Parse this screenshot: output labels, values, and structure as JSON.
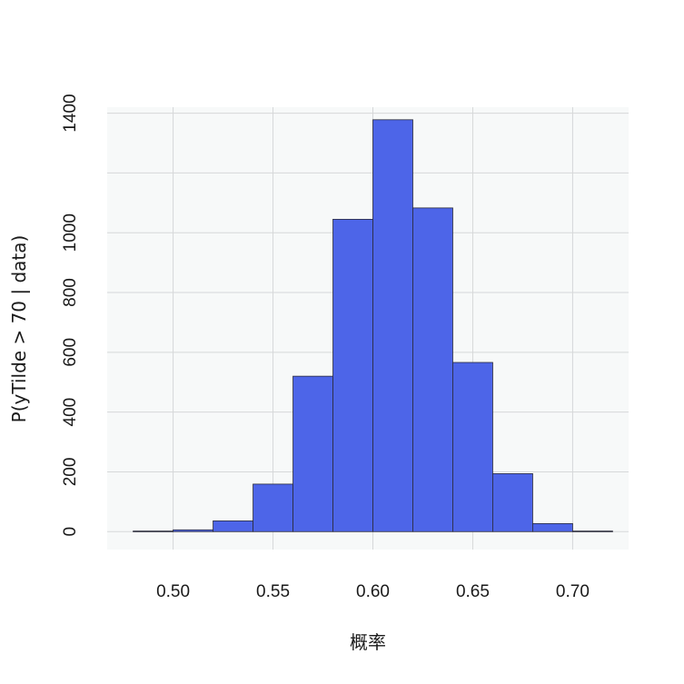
{
  "chart_data": {
    "type": "bar",
    "subtype": "histogram",
    "title": "",
    "xlabel": "概率",
    "ylabel": "P(yTilde > 70 | data)",
    "bin_edges": [
      0.48,
      0.5,
      0.52,
      0.54,
      0.56,
      0.58,
      0.6,
      0.62,
      0.64,
      0.66,
      0.68,
      0.7,
      0.72
    ],
    "values": [
      2,
      6,
      36,
      159,
      520,
      1045,
      1378,
      1083,
      566,
      194,
      27,
      2
    ],
    "xlim": [
      0.467,
      0.728
    ],
    "ylim": [
      -60,
      1420
    ],
    "xticks": [
      0.5,
      0.55,
      0.6,
      0.65,
      0.7
    ],
    "xtick_labels": [
      "0.50",
      "0.55",
      "0.60",
      "0.65",
      "0.70"
    ],
    "yticks": [
      0,
      200,
      400,
      600,
      800,
      1000,
      1400
    ],
    "ytick_labels": [
      "0",
      "200",
      "400",
      "600",
      "800",
      "1000",
      "1400"
    ],
    "ygrid": [
      0,
      200,
      400,
      600,
      800,
      1000,
      1200,
      1400
    ],
    "grid": true,
    "colors": {
      "bar_fill": "#4d65e8",
      "bar_stroke": "#2b2b3a",
      "panel_background": "#f7f9f9",
      "grid": "#d6d8d9",
      "text": "#1a1a1a"
    }
  }
}
